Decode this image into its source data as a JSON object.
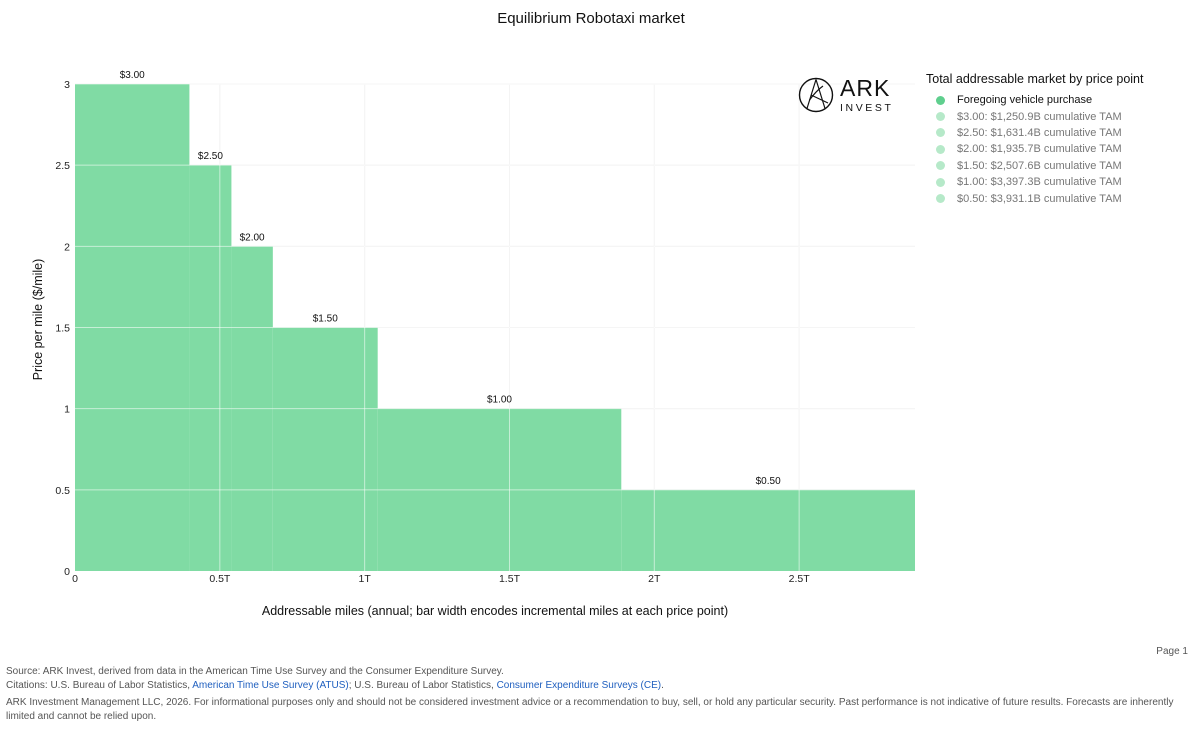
{
  "colors": {
    "bar": "#80dba4",
    "grid": "#e8e8e8",
    "legend_active": "#5fcf8e",
    "legend_faded": "#b6e9c9",
    "link": "#1f5fbf"
  },
  "logo": {
    "brand": "ARK",
    "sub": "INVEST",
    "icon": "ark-logo-icon"
  },
  "legend": {
    "title": "Total addressable market by price point",
    "items": [
      "Foregoing vehicle purchase",
      "$3.00: $1,250.9B cumulative TAM",
      "$2.50: $1,631.4B cumulative TAM",
      "$2.00: $1,935.7B cumulative TAM",
      "$1.50: $2,507.6B cumulative TAM",
      "$1.00: $3,397.3B cumulative TAM",
      "$0.50: $3,931.1B cumulative TAM"
    ]
  },
  "chart_data": {
    "type": "bar",
    "title": "Equilibrium Robotaxi market",
    "xlabel": "Addressable miles (annual; bar width encodes incremental miles at each price point)",
    "ylabel": "Price per mile ($/mile)",
    "xlim": [
      0,
      2.9
    ],
    "ylim": [
      0,
      3
    ],
    "x_ticks": [
      {
        "value": 0,
        "label": "0"
      },
      {
        "value": 0.5,
        "label": "0.5T"
      },
      {
        "value": 1,
        "label": "1T"
      },
      {
        "value": 1.5,
        "label": "1.5T"
      },
      {
        "value": 2,
        "label": "2T"
      },
      {
        "value": 2.5,
        "label": "2.5T"
      }
    ],
    "y_ticks": [
      {
        "value": 0,
        "label": "0"
      },
      {
        "value": 0.5,
        "label": "0.5"
      },
      {
        "value": 1,
        "label": "1"
      },
      {
        "value": 1.5,
        "label": "1.5"
      },
      {
        "value": 2,
        "label": "2"
      },
      {
        "value": 2.5,
        "label": "2.5"
      },
      {
        "value": 3,
        "label": "3"
      }
    ],
    "bars": [
      {
        "price": 3.0,
        "label": "$3.00",
        "x_start": 0,
        "x_end": 0.395
      },
      {
        "price": 2.5,
        "label": "$2.50",
        "x_start": 0.395,
        "x_end": 0.54
      },
      {
        "price": 2.0,
        "label": "$2.00",
        "x_start": 0.54,
        "x_end": 0.683
      },
      {
        "price": 1.5,
        "label": "$1.50",
        "x_start": 0.683,
        "x_end": 1.045
      },
      {
        "price": 1.0,
        "label": "$1.00",
        "x_start": 1.045,
        "x_end": 1.886
      },
      {
        "price": 0.5,
        "label": "$0.50",
        "x_start": 1.886,
        "x_end": 2.9
      }
    ]
  },
  "page": {
    "number": "Page 1"
  },
  "footer": {
    "source": "Source: ARK Invest, derived from data in the American Time Use Survey and the Consumer Expenditure Survey.",
    "citations_prefix": "Citations: U.S. Bureau of Labor Statistics, ",
    "atus_link": "American Time Use Survey (ATUS)",
    "citations_mid": "; U.S. Bureau of Labor Statistics, ",
    "ce_link": "Consumer Expenditure Surveys (CE)",
    "citations_suffix": ".",
    "disclaimer": "ARK Investment Management LLC, 2026. For informational purposes only and should not be considered investment advice or a recommendation to buy, sell, or hold any particular security. Past performance is not indicative of future results. Forecasts are inherently limited and cannot be relied upon."
  }
}
